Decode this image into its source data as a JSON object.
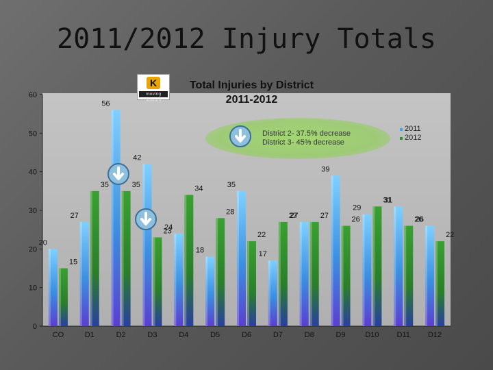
{
  "slide": {
    "title": "2011/2012 Injury Totals"
  },
  "chart_data": {
    "type": "bar",
    "title": "Total Injuries by District",
    "subtitle": "2011-2012",
    "categories": [
      "CO",
      "D1",
      "D2",
      "D3",
      "D4",
      "D5",
      "D6",
      "D7",
      "D8",
      "D9",
      "D10",
      "D11",
      "D12"
    ],
    "series": [
      {
        "name": "2011",
        "values": [
          20,
          27,
          56,
          42,
          24,
          18,
          35,
          17,
          27,
          39,
          29,
          31,
          26
        ],
        "color": "#4aa3e8"
      },
      {
        "name": "2012",
        "values": [
          15,
          35,
          35,
          23,
          34,
          28,
          22,
          27,
          27,
          26,
          31,
          26,
          22
        ],
        "color": "#2f8f2a"
      }
    ],
    "ylim": [
      0,
      60
    ],
    "yticks": [
      0,
      10,
      20,
      30,
      40,
      50,
      60
    ],
    "grid": false,
    "legend": "top-right",
    "annotations": [
      "District 2- 37.5% decrease",
      "District 3- 45% decrease"
    ]
  },
  "logo": {
    "letter": "K",
    "strip": "moving forward"
  },
  "icons": [
    "arrow-down-circle-icon"
  ]
}
